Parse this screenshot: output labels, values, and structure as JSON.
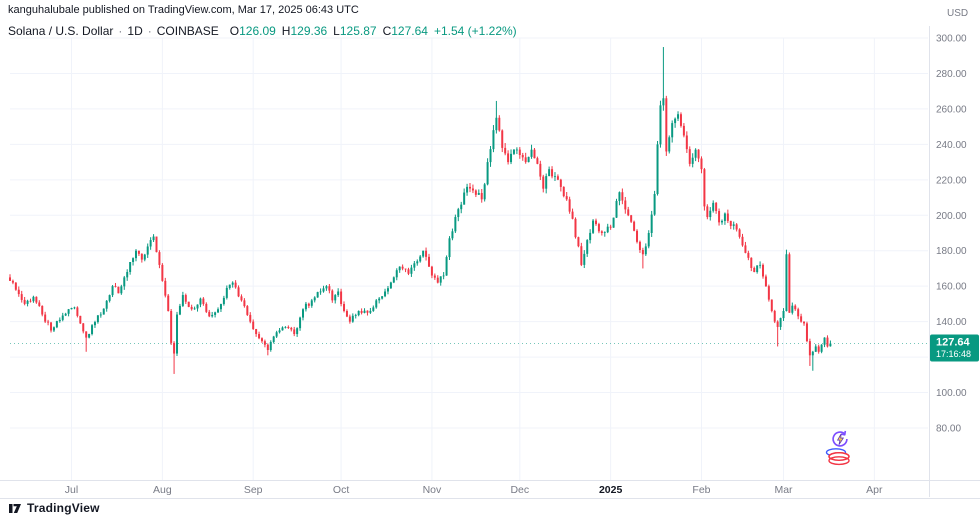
{
  "header": {
    "attribution": "kanguhalubale published on TradingView.com, Mar 17, 2025 06:43 UTC",
    "symbol": "Solana / U.S. Dollar",
    "separator": "·",
    "interval": "1D",
    "exchange": "COINBASE",
    "ohlc": {
      "o_label": "O",
      "o_value": "126.09",
      "h_label": "H",
      "h_value": "129.36",
      "l_label": "L",
      "l_value": "125.87",
      "c_label": "C",
      "c_value": "127.64",
      "change": "+1.54 (+1.22%)"
    }
  },
  "price_axis": {
    "currency": "USD",
    "last_price": "127.64",
    "countdown": "17:16:48"
  },
  "footer": {
    "brand": "TradingView"
  },
  "colors": {
    "up": "#089981",
    "down": "#f23645",
    "axis_text": "#787b86",
    "axis_text_major": "#131722",
    "grid": "#f0f3fa",
    "border": "#e0e3eb",
    "label_bg": "#089981",
    "label_text": "#ffffff"
  },
  "chart_data": {
    "type": "candlestick",
    "title": "Solana / U.S. Dollar, 1D, COINBASE",
    "symbol": "SOL/USD",
    "interval": "1D",
    "exchange": "COINBASE",
    "currency": "USD",
    "grid": true,
    "legend_position": "top-left",
    "ylim": [
      50,
      306
    ],
    "y_ticks": [
      300,
      280,
      260,
      240,
      220,
      200,
      180,
      160,
      140,
      120,
      100,
      80
    ],
    "x_ticks": [
      {
        "label": "Jul",
        "day": 21,
        "major": false
      },
      {
        "label": "Aug",
        "day": 52,
        "major": false
      },
      {
        "label": "Sep",
        "day": 83,
        "major": false
      },
      {
        "label": "Oct",
        "day": 113,
        "major": false
      },
      {
        "label": "Nov",
        "day": 144,
        "major": false
      },
      {
        "label": "Dec",
        "day": 174,
        "major": false
      },
      {
        "label": "2025",
        "day": 205,
        "major": true
      },
      {
        "label": "Feb",
        "day": 236,
        "major": false
      },
      {
        "label": "Mar",
        "day": 264,
        "major": false
      },
      {
        "label": "Apr",
        "day": 295,
        "major": false
      }
    ],
    "days_total": 281,
    "last_price": 127.64,
    "anchors": [
      [
        0,
        163
      ],
      [
        2,
        158
      ],
      [
        5,
        150
      ],
      [
        8,
        154
      ],
      [
        11,
        144
      ],
      [
        14,
        135
      ],
      [
        17,
        141
      ],
      [
        20,
        147
      ],
      [
        22,
        148
      ],
      [
        24,
        139
      ],
      [
        26,
        131
      ],
      [
        28,
        138
      ],
      [
        31,
        144
      ],
      [
        35,
        160
      ],
      [
        37,
        156
      ],
      [
        40,
        168
      ],
      [
        43,
        180
      ],
      [
        45,
        175
      ],
      [
        48,
        186
      ],
      [
        49,
        188
      ],
      [
        51,
        172
      ],
      [
        52,
        163
      ],
      [
        54,
        146
      ],
      [
        55,
        128
      ],
      [
        56,
        122
      ],
      [
        57,
        144
      ],
      [
        59,
        155
      ],
      [
        62,
        147
      ],
      [
        65,
        153
      ],
      [
        68,
        143
      ],
      [
        71,
        147
      ],
      [
        74,
        159
      ],
      [
        76,
        162
      ],
      [
        79,
        152
      ],
      [
        82,
        140
      ],
      [
        84,
        133
      ],
      [
        87,
        127
      ],
      [
        88,
        124
      ],
      [
        91,
        134
      ],
      [
        94,
        137
      ],
      [
        97,
        133
      ],
      [
        100,
        147
      ],
      [
        103,
        152
      ],
      [
        106,
        157
      ],
      [
        108,
        160
      ],
      [
        110,
        152
      ],
      [
        112,
        157
      ],
      [
        114,
        146
      ],
      [
        116,
        140
      ],
      [
        119,
        146
      ],
      [
        122,
        145
      ],
      [
        125,
        152
      ],
      [
        128,
        157
      ],
      [
        131,
        165
      ],
      [
        133,
        171
      ],
      [
        136,
        167
      ],
      [
        139,
        174
      ],
      [
        141,
        180
      ],
      [
        143,
        171
      ],
      [
        144,
        166
      ],
      [
        146,
        162
      ],
      [
        148,
        166
      ],
      [
        150,
        187
      ],
      [
        152,
        199
      ],
      [
        154,
        206
      ],
      [
        156,
        216
      ],
      [
        158,
        214
      ],
      [
        161,
        209
      ],
      [
        163,
        230
      ],
      [
        165,
        248
      ],
      [
        166,
        255
      ],
      [
        168,
        238
      ],
      [
        170,
        230
      ],
      [
        172,
        237
      ],
      [
        174,
        234
      ],
      [
        176,
        230
      ],
      [
        178,
        237
      ],
      [
        180,
        229
      ],
      [
        182,
        215
      ],
      [
        184,
        226
      ],
      [
        186,
        222
      ],
      [
        188,
        216
      ],
      [
        190,
        209
      ],
      [
        192,
        198
      ],
      [
        195,
        172
      ],
      [
        197,
        186
      ],
      [
        199,
        197
      ],
      [
        202,
        190
      ],
      [
        205,
        193
      ],
      [
        208,
        213
      ],
      [
        211,
        200
      ],
      [
        214,
        185
      ],
      [
        216,
        178
      ],
      [
        218,
        190
      ],
      [
        220,
        212
      ],
      [
        221,
        240
      ],
      [
        222,
        262
      ],
      [
        223,
        266
      ],
      [
        224,
        236
      ],
      [
        226,
        252
      ],
      [
        228,
        257
      ],
      [
        230,
        245
      ],
      [
        232,
        229
      ],
      [
        234,
        237
      ],
      [
        236,
        226
      ],
      [
        237,
        205
      ],
      [
        238,
        199
      ],
      [
        240,
        207
      ],
      [
        242,
        196
      ],
      [
        244,
        201
      ],
      [
        246,
        194
      ],
      [
        248,
        192
      ],
      [
        250,
        183
      ],
      [
        252,
        176
      ],
      [
        254,
        168
      ],
      [
        256,
        172
      ],
      [
        258,
        160
      ],
      [
        260,
        146
      ],
      [
        262,
        137
      ],
      [
        263,
        142
      ],
      [
        264,
        146
      ],
      [
        265,
        178
      ],
      [
        266,
        145
      ],
      [
        267,
        149
      ],
      [
        268,
        147
      ],
      [
        269,
        143
      ],
      [
        270,
        140
      ],
      [
        271,
        139
      ],
      [
        272,
        129
      ],
      [
        273,
        121
      ],
      [
        274,
        123
      ],
      [
        275,
        126
      ],
      [
        276,
        123
      ],
      [
        277,
        127
      ],
      [
        278,
        131
      ],
      [
        279,
        126
      ],
      [
        280,
        127.64
      ]
    ],
    "wick_overrides": [
      {
        "day": 26,
        "l": 123
      },
      {
        "day": 56,
        "l": 110.5
      },
      {
        "day": 88,
        "l": 121
      },
      {
        "day": 166,
        "h": 264.5
      },
      {
        "day": 216,
        "l": 170
      },
      {
        "day": 223,
        "h": 294.9
      },
      {
        "day": 262,
        "l": 126
      },
      {
        "day": 265,
        "h": 180.6
      },
      {
        "day": 273,
        "l": 115
      },
      {
        "day": 274,
        "l": 112.3
      },
      {
        "day": 280,
        "o": 126.09,
        "h": 129.36,
        "l": 125.87,
        "c": 127.64
      }
    ],
    "last_ohlc": {
      "o": 126.09,
      "h": 129.36,
      "l": 125.87,
      "c": 127.64
    }
  }
}
